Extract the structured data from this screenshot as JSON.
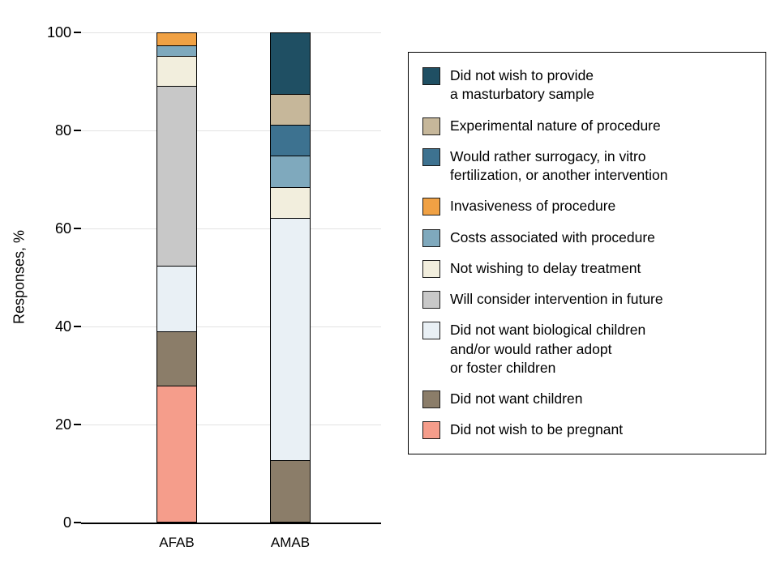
{
  "figure": {
    "background": "#ffffff"
  },
  "chart_data": {
    "type": "bar",
    "stacked": true,
    "title": "",
    "xlabel": "",
    "ylabel": "Responses, %",
    "ylim": [
      0,
      100
    ],
    "yticks": [
      0,
      20,
      40,
      60,
      80,
      100
    ],
    "grid": true,
    "legend_position": "right",
    "categories": [
      "AFAB",
      "AMAB"
    ],
    "series": [
      {
        "name": "Did not wish to provide\na masturbatory sample",
        "color": "#1f4f63",
        "values": [
          0,
          12.5
        ]
      },
      {
        "name": "Experimental nature of procedure",
        "color": "#c6b79a",
        "values": [
          0,
          6.25
        ]
      },
      {
        "name": "Would rather surrogacy, in vitro\nfertilization, or another intervention",
        "color": "#3d7290",
        "values": [
          0,
          6.25
        ]
      },
      {
        "name": "Invasiveness of procedure",
        "color": "#f0a144",
        "values": [
          2.5,
          0
        ]
      },
      {
        "name": "Costs associated with procedure",
        "color": "#7fa9bd",
        "values": [
          2,
          6.25
        ]
      },
      {
        "name": "Not wishing to delay treatment",
        "color": "#f2eedd",
        "values": [
          6,
          6.25
        ]
      },
      {
        "name": "Will consider intervention in future",
        "color": "#c8c8c8",
        "values": [
          37,
          0
        ]
      },
      {
        "name": "Did not want biological children\nand/or would rather adopt\nor foster children",
        "color": "#e9f0f5",
        "values": [
          13.5,
          50
        ]
      },
      {
        "name": "Did not want children",
        "color": "#8b7d69",
        "values": [
          11,
          12.5
        ]
      },
      {
        "name": "Did not wish to be pregnant",
        "color": "#f59d8b",
        "values": [
          28,
          0
        ]
      }
    ]
  }
}
